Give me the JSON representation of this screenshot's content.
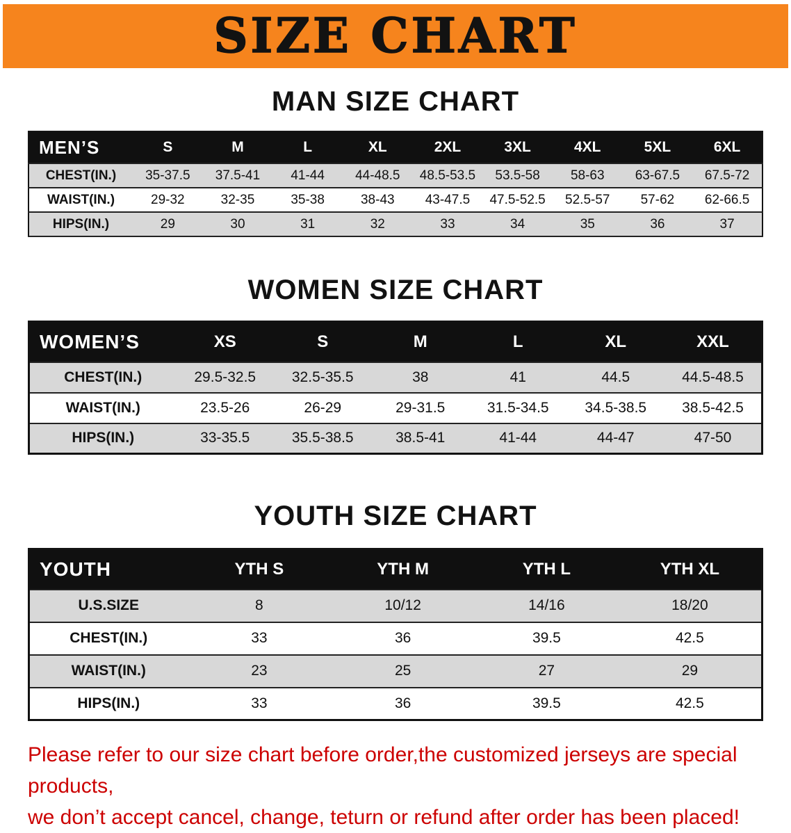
{
  "banner": {
    "title": "SIZE CHART",
    "bg_color": "#F6841D",
    "text_color": "#121212"
  },
  "sections": [
    {
      "heading": "MAN SIZE CHART",
      "table": {
        "name": "mens-size-table",
        "label": "MEN’S",
        "columns": [
          "S",
          "M",
          "L",
          "XL",
          "2XL",
          "3XL",
          "4XL",
          "5XL",
          "6XL"
        ],
        "rows": [
          {
            "label": "CHEST(IN.)",
            "values": [
              "35-37.5",
              "37.5-41",
              "41-44",
              "44-48.5",
              "48.5-53.5",
              "53.5-58",
              "58-63",
              "63-67.5",
              "67.5-72"
            ]
          },
          {
            "label": "WAIST(IN.)",
            "values": [
              "29-32",
              "32-35",
              "35-38",
              "38-43",
              "43-47.5",
              "47.5-52.5",
              "52.5-57",
              "57-62",
              "62-66.5"
            ]
          },
          {
            "label": "HIPS(IN.)",
            "values": [
              "29",
              "30",
              "31",
              "32",
              "33",
              "34",
              "35",
              "36",
              "37"
            ]
          }
        ]
      }
    },
    {
      "heading": "WOMEN SIZE CHART",
      "table": {
        "name": "womens-size-table",
        "label": "WOMEN’S",
        "columns": [
          "XS",
          "S",
          "M",
          "L",
          "XL",
          "XXL"
        ],
        "rows": [
          {
            "label": "CHEST(IN.)",
            "values": [
              "29.5-32.5",
              "32.5-35.5",
              "38",
              "41",
              "44.5",
              "44.5-48.5"
            ]
          },
          {
            "label": "WAIST(IN.)",
            "values": [
              "23.5-26",
              "26-29",
              "29-31.5",
              "31.5-34.5",
              "34.5-38.5",
              "38.5-42.5"
            ]
          },
          {
            "label": "HIPS(IN.)",
            "values": [
              "33-35.5",
              "35.5-38.5",
              "38.5-41",
              "41-44",
              "44-47",
              "47-50"
            ]
          }
        ]
      }
    },
    {
      "heading": "YOUTH SIZE CHART",
      "table": {
        "name": "youth-size-table",
        "label": "YOUTH",
        "columns": [
          "YTH S",
          "YTH M",
          "YTH L",
          "YTH XL"
        ],
        "rows": [
          {
            "label": "U.S.SIZE",
            "values": [
              "8",
              "10/12",
              "14/16",
              "18/20"
            ]
          },
          {
            "label": "CHEST(IN.)",
            "values": [
              "33",
              "36",
              "39.5",
              "42.5"
            ]
          },
          {
            "label": "WAIST(IN.)",
            "values": [
              "23",
              "25",
              "27",
              "29"
            ]
          },
          {
            "label": "HIPS(IN.)",
            "values": [
              "33",
              "36",
              "39.5",
              "42.5"
            ]
          }
        ]
      }
    }
  ],
  "footer": {
    "line1": "Please refer to our size chart before order,the customized jerseys are special products,",
    "line2": "we don’t accept cancel, change, teturn or refund after order has been placed!",
    "text_color": "#CC0000"
  }
}
